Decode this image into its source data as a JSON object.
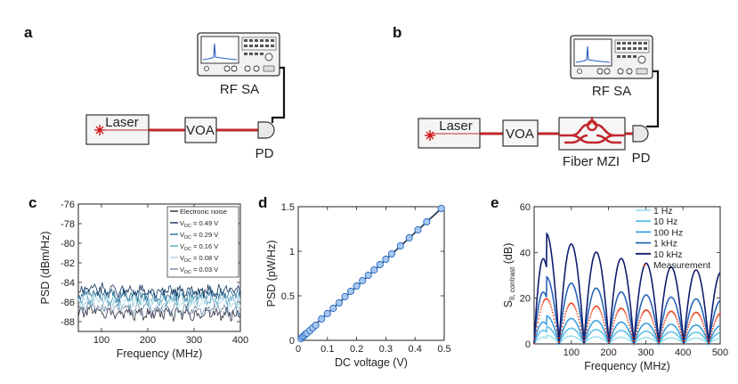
{
  "panels": {
    "a": {
      "letter": "a",
      "laser": "Laser",
      "voa": "VOA",
      "pd": "PD",
      "sa": "RF SA"
    },
    "b": {
      "letter": "b",
      "laser": "Laser",
      "voa": "VOA",
      "mzi": "Fiber MZI",
      "pd": "PD",
      "sa": "RF SA"
    }
  },
  "colors": {
    "fiber": "#c1272d",
    "cable": "#111111",
    "marker_fill": "#a9c8ef",
    "marker_stroke": "#2f6fc4"
  },
  "chart_data": [
    {
      "panel": "c",
      "type": "line",
      "xlabel": "Frequency (MHz)",
      "ylabel": "PSD (dBm/Hz)",
      "xlim": [
        50,
        400
      ],
      "ylim": [
        -89,
        -76
      ],
      "xticks": [
        100,
        200,
        300,
        400
      ],
      "yticks": [
        -76,
        -78,
        -80,
        -82,
        -84,
        -86,
        -88
      ],
      "legend_position": "top-right",
      "series": [
        {
          "name": "Electronic noise",
          "level": -87.2,
          "color": "#2a2a3a"
        },
        {
          "name": "V_DC = 0.03 V",
          "level": -86.7,
          "color": "#6e8aa8"
        },
        {
          "name": "V_DC = 0.08 V",
          "level": -86.1,
          "color": "#a7d4e0"
        },
        {
          "name": "V_DC = 0.16 V",
          "level": -85.7,
          "color": "#5fa9c4"
        },
        {
          "name": "V_DC = 0.29 V",
          "level": -85.3,
          "color": "#2b6f96"
        },
        {
          "name": "V_DC = 0.49 V",
          "level": -84.9,
          "color": "#12335c"
        }
      ],
      "legend": [
        {
          "text": "Electronic noise",
          "color": "#2a2a3a"
        },
        {
          "base": "V",
          "sub": "DC",
          "rest": " = 0.49 V",
          "color": "#12335c"
        },
        {
          "base": "V",
          "sub": "DC",
          "rest": " = 0.29 V",
          "color": "#2b6f96"
        },
        {
          "base": "V",
          "sub": "DC",
          "rest": " = 0.16 V",
          "color": "#5fa9c4"
        },
        {
          "base": "V",
          "sub": "DC",
          "rest": " = 0.08 V",
          "color": "#a7d4e0"
        },
        {
          "base": "V",
          "sub": "DC",
          "rest": " = 0.03 V",
          "color": "#6e8aa8"
        }
      ]
    },
    {
      "panel": "d",
      "type": "scatter",
      "xlabel": "DC voltage (V)",
      "ylabel": "PSD (pW/Hz)",
      "xlim": [
        0,
        0.5
      ],
      "ylim": [
        0,
        1.5
      ],
      "xticks": [
        0,
        0.1,
        0.2,
        0.3,
        0.4,
        0.5
      ],
      "yticks": [
        0,
        0.5,
        1,
        1.5
      ],
      "fit": {
        "x": [
          0,
          0.49
        ],
        "y": [
          0,
          1.48
        ]
      },
      "x": [
        0.01,
        0.015,
        0.02,
        0.025,
        0.03,
        0.04,
        0.05,
        0.06,
        0.08,
        0.1,
        0.12,
        0.14,
        0.16,
        0.18,
        0.2,
        0.22,
        0.24,
        0.26,
        0.28,
        0.3,
        0.32,
        0.35,
        0.38,
        0.41,
        0.44,
        0.49
      ],
      "y": [
        0.02,
        0.04,
        0.05,
        0.07,
        0.08,
        0.11,
        0.14,
        0.17,
        0.24,
        0.3,
        0.36,
        0.42,
        0.49,
        0.55,
        0.61,
        0.67,
        0.73,
        0.79,
        0.85,
        0.91,
        0.97,
        1.06,
        1.15,
        1.24,
        1.33,
        1.48
      ]
    },
    {
      "panel": "e",
      "type": "line",
      "xlabel": "Frequency (MHz)",
      "ylabel": {
        "base": "S",
        "sub": "II, contrast",
        "rest": " (dB)"
      },
      "xlim": [
        0,
        500
      ],
      "ylim": [
        0,
        60
      ],
      "xticks": [
        100,
        200,
        300,
        400,
        500
      ],
      "yticks": [
        0,
        20,
        40,
        60
      ],
      "legend_position": "top-right",
      "null_spacing_mhz": 67,
      "series": [
        {
          "name": "1 Hz",
          "peak": 4,
          "color": "#9fe0f0"
        },
        {
          "name": "10 Hz",
          "peak": 8,
          "color": "#5fc0e6"
        },
        {
          "name": "100 Hz",
          "peak": 13,
          "color": "#3f9fe0"
        },
        {
          "name": "1 kHz",
          "peak": 31,
          "color": "#2a65b8"
        },
        {
          "name": "10 kHz",
          "peak": 51,
          "color": "#101e6e"
        },
        {
          "name": "Measurement",
          "peak": 21,
          "color": "#e8431f",
          "style": "dots"
        }
      ]
    }
  ],
  "panel_letters": {
    "c": "c",
    "d": "d",
    "e": "e"
  }
}
